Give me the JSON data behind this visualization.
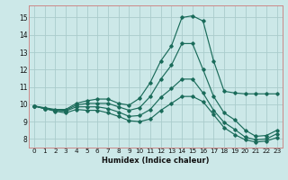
{
  "xlabel": "Humidex (Indice chaleur)",
  "ylabel": "",
  "background_color": "#cce8e8",
  "grid_color": "#aacccc",
  "line_color": "#1a6b5a",
  "xlim": [
    -0.5,
    23.5
  ],
  "ylim": [
    7.5,
    15.7
  ],
  "xticks": [
    0,
    1,
    2,
    3,
    4,
    5,
    6,
    7,
    8,
    9,
    10,
    11,
    12,
    13,
    14,
    15,
    16,
    17,
    18,
    19,
    20,
    21,
    22,
    23
  ],
  "yticks": [
    8,
    9,
    10,
    11,
    12,
    13,
    14,
    15
  ],
  "lines": [
    [
      9.9,
      9.8,
      9.7,
      9.7,
      10.05,
      10.2,
      10.3,
      10.3,
      10.05,
      9.95,
      10.35,
      11.25,
      12.5,
      13.35,
      15.0,
      15.1,
      14.8,
      12.5,
      10.75,
      10.65,
      10.6,
      10.6,
      10.6,
      10.6
    ],
    [
      9.9,
      9.75,
      9.65,
      9.65,
      9.95,
      10.05,
      10.05,
      10.05,
      9.85,
      9.65,
      9.8,
      10.45,
      11.45,
      12.25,
      13.5,
      13.5,
      12.0,
      10.45,
      9.5,
      9.1,
      8.5,
      8.15,
      8.2,
      8.5
    ],
    [
      9.9,
      9.75,
      9.65,
      9.6,
      9.85,
      9.85,
      9.85,
      9.75,
      9.55,
      9.3,
      9.35,
      9.7,
      10.4,
      10.9,
      11.45,
      11.45,
      10.65,
      9.65,
      8.95,
      8.55,
      8.1,
      7.95,
      8.0,
      8.3
    ],
    [
      9.9,
      9.75,
      9.6,
      9.5,
      9.7,
      9.65,
      9.65,
      9.5,
      9.3,
      9.05,
      9.0,
      9.15,
      9.65,
      10.05,
      10.45,
      10.45,
      10.15,
      9.4,
      8.65,
      8.25,
      7.95,
      7.82,
      7.88,
      8.08
    ]
  ]
}
